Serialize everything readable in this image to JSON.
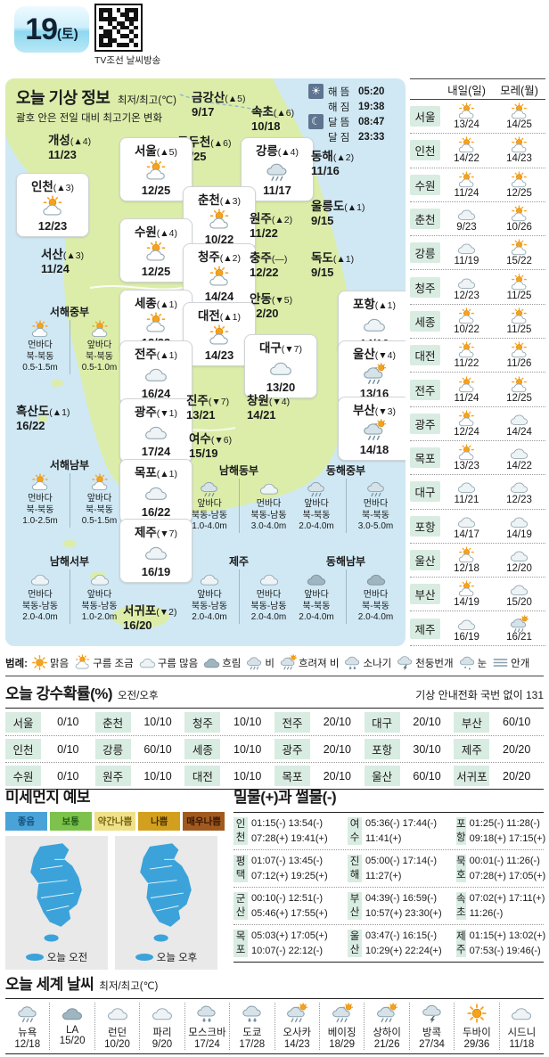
{
  "header": {
    "date": "19",
    "day": "(토)",
    "qr_caption": "TV조선 날씨방송"
  },
  "today_map": {
    "title": "오늘 기상 정보",
    "subtitle1": "최저/최고(℃)",
    "subtitle2": "괄호 안은 전일 대비 최고기온 변화",
    "sun_moon": [
      {
        "label": "해 뜸",
        "value": "05:20",
        "icon": "sun"
      },
      {
        "label": "해 짐",
        "value": "19:38",
        "icon": null
      },
      {
        "label": "달 뜸",
        "value": "08:47",
        "icon": "moon"
      },
      {
        "label": "달 짐",
        "value": "23:33",
        "icon": null
      }
    ],
    "cities": [
      {
        "id": "geumgangsan",
        "name": "금강산",
        "change": "▲5",
        "temp": "9/17",
        "icon": null,
        "boxed": false
      },
      {
        "id": "sokcho",
        "name": "속초",
        "change": "▲6",
        "temp": "10/18",
        "icon": null,
        "boxed": false
      },
      {
        "id": "gaeseong",
        "name": "개성",
        "change": "▲4",
        "temp": "11/23",
        "icon": null,
        "boxed": false
      },
      {
        "id": "dongducheon",
        "name": "동두천",
        "change": "▲6",
        "temp": "10/25",
        "icon": null,
        "boxed": false
      },
      {
        "id": "seoul",
        "name": "서울",
        "change": "▲5",
        "temp": "12/25",
        "icon": "partly",
        "boxed": true
      },
      {
        "id": "gangneung",
        "name": "강릉",
        "change": "▲4",
        "temp": "11/17",
        "icon": "rain",
        "boxed": true
      },
      {
        "id": "donghae",
        "name": "동해",
        "change": "▲2",
        "temp": "11/16",
        "icon": null,
        "boxed": false
      },
      {
        "id": "incheon",
        "name": "인천",
        "change": "▲3",
        "temp": "12/23",
        "icon": "partly",
        "boxed": true
      },
      {
        "id": "chuncheon",
        "name": "춘천",
        "change": "▲3",
        "temp": "10/22",
        "icon": "partly",
        "boxed": true
      },
      {
        "id": "ulleungdo",
        "name": "울릉도",
        "change": "▲1",
        "temp": "9/15",
        "icon": null,
        "boxed": false
      },
      {
        "id": "suwon",
        "name": "수원",
        "change": "▲4",
        "temp": "12/25",
        "icon": "partly",
        "boxed": true
      },
      {
        "id": "wonju",
        "name": "원주",
        "change": "▲2",
        "temp": "11/22",
        "icon": null,
        "boxed": false
      },
      {
        "id": "dokdo",
        "name": "독도",
        "change": "▲1",
        "temp": "9/15",
        "icon": null,
        "boxed": false
      },
      {
        "id": "seosan",
        "name": "서산",
        "change": "▲3",
        "temp": "11/24",
        "icon": null,
        "boxed": false
      },
      {
        "id": "cheongju",
        "name": "청주",
        "change": "▲2",
        "temp": "14/24",
        "icon": "partly",
        "boxed": true
      },
      {
        "id": "chungju",
        "name": "충주",
        "change": "—",
        "temp": "12/22",
        "icon": null,
        "boxed": false
      },
      {
        "id": "sejong",
        "name": "세종",
        "change": "▲1",
        "temp": "12/23",
        "icon": "partly",
        "boxed": true
      },
      {
        "id": "andong",
        "name": "안동",
        "change": "▼5",
        "temp": "12/20",
        "icon": null,
        "boxed": false
      },
      {
        "id": "pohang",
        "name": "포항",
        "change": "▲1",
        "temp": "14/16",
        "icon": "cloud",
        "boxed": true
      },
      {
        "id": "daejeon",
        "name": "대전",
        "change": "▲1",
        "temp": "14/23",
        "icon": "partly",
        "boxed": true
      },
      {
        "id": "jeonju",
        "name": "전주",
        "change": "▲1",
        "temp": "16/24",
        "icon": "cloud",
        "boxed": true
      },
      {
        "id": "daegu",
        "name": "대구",
        "change": "▼7",
        "temp": "13/20",
        "icon": "cloud",
        "boxed": true
      },
      {
        "id": "ulsan",
        "name": "울산",
        "change": "▼4",
        "temp": "13/16",
        "icon": "rain-sun",
        "boxed": true
      },
      {
        "id": "heuksando",
        "name": "흑산도",
        "change": "▲1",
        "temp": "16/22",
        "icon": null,
        "boxed": false
      },
      {
        "id": "gwangju",
        "name": "광주",
        "change": "▼1",
        "temp": "17/24",
        "icon": "cloud",
        "boxed": true
      },
      {
        "id": "jinju",
        "name": "진주",
        "change": "▼7",
        "temp": "13/21",
        "icon": null,
        "boxed": false
      },
      {
        "id": "changwon",
        "name": "창원",
        "change": "▼4",
        "temp": "14/21",
        "icon": null,
        "boxed": false
      },
      {
        "id": "busan",
        "name": "부산",
        "change": "▼3",
        "temp": "14/18",
        "icon": "rain-sun",
        "boxed": true
      },
      {
        "id": "yeosu",
        "name": "여수",
        "change": "▼6",
        "temp": "15/19",
        "icon": null,
        "boxed": false
      },
      {
        "id": "mokpo",
        "name": "목포",
        "change": "▲1",
        "temp": "16/22",
        "icon": "cloud",
        "boxed": true
      },
      {
        "id": "jeju",
        "name": "제주",
        "change": "▼7",
        "temp": "16/19",
        "icon": "cloud",
        "boxed": true
      },
      {
        "id": "seogwipo",
        "name": "서귀포",
        "change": "▼2",
        "temp": "16/20",
        "icon": null,
        "boxed": false
      }
    ],
    "sea_zones": [
      {
        "id": "seohae-jungbu",
        "title": "서해중부",
        "cols": [
          {
            "area": "먼바다",
            "dir": "북-북동",
            "wave": "0.5-1.5m",
            "icon": "partly"
          },
          {
            "area": "앞바다",
            "dir": "북-북동",
            "wave": "0.5-1.0m",
            "icon": "partly"
          }
        ]
      },
      {
        "id": "seohae-nambu",
        "title": "서해남부",
        "cols": [
          {
            "area": "먼바다",
            "dir": "북-북동",
            "wave": "1.0-2.5m",
            "icon": "partly"
          },
          {
            "area": "앞바다",
            "dir": "북-북동",
            "wave": "0.5-1.5m",
            "icon": "partly"
          }
        ]
      },
      {
        "id": "namhae-dongbu",
        "title": "남해동부",
        "cols": [
          {
            "area": "앞바다",
            "dir": "북동-남동",
            "wave": "1.0-4.0m",
            "icon": "rain"
          },
          {
            "area": "먼바다",
            "dir": "북동-남동",
            "wave": "3.0-4.0m",
            "icon": "cloud"
          }
        ]
      },
      {
        "id": "donghae-jungbu",
        "title": "동해중부",
        "cols": [
          {
            "area": "앞바다",
            "dir": "북-북동",
            "wave": "2.0-4.0m",
            "icon": "rain"
          },
          {
            "area": "먼바다",
            "dir": "북-북동",
            "wave": "3.0-5.0m",
            "icon": "rain"
          }
        ]
      },
      {
        "id": "namhae-seobu",
        "title": "남해서부",
        "cols": [
          {
            "area": "먼바다",
            "dir": "북동-남동",
            "wave": "2.0-4.0m",
            "icon": "cloud"
          },
          {
            "area": "앞바다",
            "dir": "북동-남동",
            "wave": "1.0-2.0m",
            "icon": "cloud"
          }
        ]
      },
      {
        "id": "jeju-sea",
        "title": "제주",
        "cols": [
          {
            "area": "앞바다",
            "dir": "북동-남동",
            "wave": "2.0-4.0m",
            "icon": "cloud"
          },
          {
            "area": "먼바다",
            "dir": "북동-남동",
            "wave": "2.0-4.0m",
            "icon": "cloud"
          }
        ]
      },
      {
        "id": "donghae-nambu",
        "title": "동해남부",
        "cols": [
          {
            "area": "앞바다",
            "dir": "북-북동",
            "wave": "2.0-4.0m",
            "icon": "cloud-dark"
          },
          {
            "area": "먼바다",
            "dir": "북-북동",
            "wave": "2.0-4.0m",
            "icon": "cloud-dark"
          }
        ]
      }
    ]
  },
  "forecast_column": {
    "headers": [
      "내일(일)",
      "모레(월)"
    ],
    "rows": [
      {
        "city": "서울",
        "d1": {
          "icon": "partly",
          "temp": "13/24"
        },
        "d2": {
          "icon": "partly",
          "temp": "14/25"
        }
      },
      {
        "city": "인천",
        "d1": {
          "icon": "partly",
          "temp": "14/22"
        },
        "d2": {
          "icon": "partly",
          "temp": "14/23"
        }
      },
      {
        "city": "수원",
        "d1": {
          "icon": "partly",
          "temp": "11/24"
        },
        "d2": {
          "icon": "partly",
          "temp": "12/25"
        }
      },
      {
        "city": "춘천",
        "d1": {
          "icon": "cloud",
          "temp": "9/23"
        },
        "d2": {
          "icon": "partly",
          "temp": "10/26"
        }
      },
      {
        "city": "강릉",
        "d1": {
          "icon": "cloud",
          "temp": "11/19"
        },
        "d2": {
          "icon": "partly",
          "temp": "15/22"
        }
      },
      {
        "city": "청주",
        "d1": {
          "icon": "cloud",
          "temp": "12/23"
        },
        "d2": {
          "icon": "partly",
          "temp": "11/25"
        }
      },
      {
        "city": "세종",
        "d1": {
          "icon": "partly",
          "temp": "10/22"
        },
        "d2": {
          "icon": "partly",
          "temp": "11/25"
        }
      },
      {
        "city": "대전",
        "d1": {
          "icon": "partly",
          "temp": "11/22"
        },
        "d2": {
          "icon": "partly",
          "temp": "11/26"
        }
      },
      {
        "city": "전주",
        "d1": {
          "icon": "partly",
          "temp": "11/24"
        },
        "d2": {
          "icon": "partly",
          "temp": "12/25"
        }
      },
      {
        "city": "광주",
        "d1": {
          "icon": "partly",
          "temp": "12/24"
        },
        "d2": {
          "icon": "cloud",
          "temp": "14/24"
        }
      },
      {
        "city": "목포",
        "d1": {
          "icon": "partly",
          "temp": "13/23"
        },
        "d2": {
          "icon": "cloud",
          "temp": "14/22"
        }
      },
      {
        "city": "대구",
        "d1": {
          "icon": "cloud",
          "temp": "11/21"
        },
        "d2": {
          "icon": "cloud",
          "temp": "12/23"
        }
      },
      {
        "city": "포항",
        "d1": {
          "icon": "cloud",
          "temp": "14/17"
        },
        "d2": {
          "icon": "cloud",
          "temp": "14/19"
        }
      },
      {
        "city": "울산",
        "d1": {
          "icon": "partly",
          "temp": "12/18"
        },
        "d2": {
          "icon": "cloud",
          "temp": "12/20"
        }
      },
      {
        "city": "부산",
        "d1": {
          "icon": "partly",
          "temp": "14/19"
        },
        "d2": {
          "icon": "cloud",
          "temp": "15/20"
        }
      },
      {
        "city": "제주",
        "d1": {
          "icon": "cloud",
          "temp": "16/19"
        },
        "d2": {
          "icon": "rain-sun",
          "temp": "16/21"
        }
      }
    ]
  },
  "legend": {
    "prefix": "범례:",
    "items": [
      {
        "label": "맑음",
        "icon": "sun"
      },
      {
        "label": "구름 조금",
        "icon": "partly"
      },
      {
        "label": "구름 많음",
        "icon": "cloud"
      },
      {
        "label": "흐림",
        "icon": "cloud-dark"
      },
      {
        "label": "비",
        "icon": "rain"
      },
      {
        "label": "흐려져 비",
        "icon": "rain-sun"
      },
      {
        "label": "소나기",
        "icon": "shower"
      },
      {
        "label": "천둥번개",
        "icon": "thunder"
      },
      {
        "label": "눈",
        "icon": "snow"
      },
      {
        "label": "안개",
        "icon": "fog"
      }
    ]
  },
  "precipitation": {
    "title": "오늘 강수확률(%)",
    "subtitle": "오전/오후",
    "note": "기상 안내전화 국번 없이 131",
    "rows": [
      [
        {
          "city": "서울",
          "value": "0/10"
        },
        {
          "city": "춘천",
          "value": "10/10"
        },
        {
          "city": "청주",
          "value": "10/10"
        },
        {
          "city": "전주",
          "value": "20/10"
        },
        {
          "city": "대구",
          "value": "20/10"
        },
        {
          "city": "부산",
          "value": "60/10"
        }
      ],
      [
        {
          "city": "인천",
          "value": "0/10"
        },
        {
          "city": "강릉",
          "value": "60/10"
        },
        {
          "city": "세종",
          "value": "10/10"
        },
        {
          "city": "광주",
          "value": "20/10"
        },
        {
          "city": "포항",
          "value": "30/10"
        },
        {
          "city": "제주",
          "value": "20/20"
        }
      ],
      [
        {
          "city": "수원",
          "value": "0/10"
        },
        {
          "city": "원주",
          "value": "10/10"
        },
        {
          "city": "대전",
          "value": "10/10"
        },
        {
          "city": "목포",
          "value": "20/10"
        },
        {
          "city": "울산",
          "value": "60/10"
        },
        {
          "city": "서귀포",
          "value": "20/20"
        }
      ]
    ]
  },
  "dust": {
    "title": "미세먼지 예보",
    "levels": [
      {
        "label": "좋음",
        "bg": "#4aa3d8",
        "fg": "#14527e"
      },
      {
        "label": "보통",
        "bg": "#7cc24c",
        "fg": "#1e5c14"
      },
      {
        "label": "약간나쁨",
        "bg": "#efe08a",
        "fg": "#77650e"
      },
      {
        "label": "나쁨",
        "bg": "#d2a01e",
        "fg": "#4a3000"
      },
      {
        "label": "매우나쁨",
        "bg": "#a05a20",
        "fg": "#3a1500"
      }
    ],
    "map_color": "#3ba3da",
    "panels": [
      {
        "label": "오늘 오전"
      },
      {
        "label": "오늘 오후"
      }
    ]
  },
  "tide": {
    "title": "밀물(+)과 썰물(-)",
    "rows": [
      [
        {
          "city": "인천",
          "line1": "01:15(-) 13:54(-)",
          "line2": "07:28(+) 19:41(+)"
        },
        {
          "city": "여수",
          "line1": "05:36(-) 17:44(-)",
          "line2": "11:41(+)"
        },
        {
          "city": "포항",
          "line1": "01:25(-) 11:28(-)",
          "line2": "09:18(+) 17:15(+)"
        }
      ],
      [
        {
          "city": "평택",
          "line1": "01:07(-) 13:45(-)",
          "line2": "07:12(+) 19:25(+)"
        },
        {
          "city": "진해",
          "line1": "05:00(-) 17:14(-)",
          "line2": "11:27(+)"
        },
        {
          "city": "묵호",
          "line1": "00:01(-) 11:26(-)",
          "line2": "07:28(+) 17:05(+)"
        }
      ],
      [
        {
          "city": "군산",
          "line1": "00:10(-) 12:51(-)",
          "line2": "05:46(+) 17:55(+)"
        },
        {
          "city": "부산",
          "line1": "04:39(-) 16:59(-)",
          "line2": "10:57(+) 23:30(+)"
        },
        {
          "city": "속초",
          "line1": "07:02(+) 17:11(+)",
          "line2": "11:26(-)"
        }
      ],
      [
        {
          "city": "목포",
          "line1": "05:03(+) 17:05(+)",
          "line2": "10:07(-) 22:12(-)"
        },
        {
          "city": "울산",
          "line1": "03:47(-) 16:15(-)",
          "line2": "10:29(+) 22:24(+)"
        },
        {
          "city": "제주",
          "line1": "01:15(+) 13:02(+)",
          "line2": "07:53(-) 19:46(-)"
        }
      ]
    ]
  },
  "world": {
    "title": "오늘 세계 날씨",
    "subtitle": "최저/최고(℃)",
    "cities": [
      {
        "name": "뉴욕",
        "temp": "12/18",
        "icon": "rain"
      },
      {
        "name": "LA",
        "temp": "15/20",
        "icon": "cloud-dark"
      },
      {
        "name": "런던",
        "temp": "10/20",
        "icon": "cloud"
      },
      {
        "name": "파리",
        "temp": "9/20",
        "icon": "cloud"
      },
      {
        "name": "모스크바",
        "temp": "17/24",
        "icon": "shower"
      },
      {
        "name": "도쿄",
        "temp": "17/28",
        "icon": "shower"
      },
      {
        "name": "오사카",
        "temp": "14/23",
        "icon": "rain-sun"
      },
      {
        "name": "베이징",
        "temp": "18/29",
        "icon": "rain-sun"
      },
      {
        "name": "상하이",
        "temp": "21/26",
        "icon": "rain-sun"
      },
      {
        "name": "방콕",
        "temp": "27/34",
        "icon": "thunder"
      },
      {
        "name": "두바이",
        "temp": "29/36",
        "icon": "sun"
      },
      {
        "name": "시드니",
        "temp": "11/18",
        "icon": "cloud"
      }
    ]
  }
}
